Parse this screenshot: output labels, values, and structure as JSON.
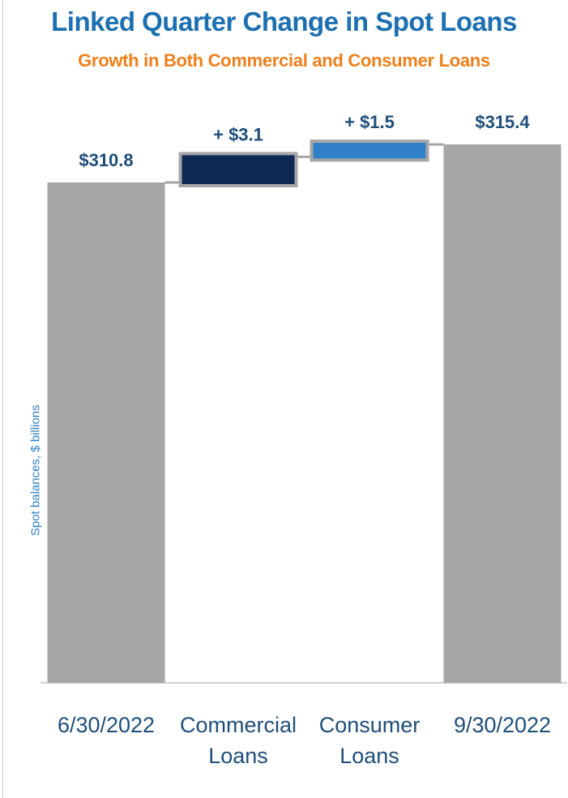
{
  "title": "Linked Quarter Change in Spot Loans",
  "subtitle": "Growth in Both Commercial and Consumer Loans",
  "colors": {
    "title": "#1c6fb0",
    "subtitle": "#f07f1a",
    "total_bar": "#a6a6a6",
    "commercial": "#0e2a54",
    "consumer": "#2f80c8",
    "label": "#1f4e79",
    "axis": "#cfcfcf"
  },
  "chart_data": {
    "type": "bar",
    "subtype": "waterfall",
    "title": "Linked Quarter Change in Spot Loans",
    "subtitle": "Growth in Both Commercial and Consumer Loans",
    "ylabel": "Spot balances, $ billions",
    "xlabel": "",
    "categories": [
      "6/30/2022",
      "Commercial Loans",
      "Consumer Loans",
      "9/30/2022"
    ],
    "category_labels": [
      "6/30/2022",
      "Commercial\nLoans",
      "Consumer\nLoans",
      "9/30/2022"
    ],
    "values": [
      310.8,
      3.1,
      1.5,
      315.4
    ],
    "kinds": [
      "total",
      "increase",
      "increase",
      "total"
    ],
    "data_labels": [
      "$310.8",
      "+ $3.1",
      "+ $1.5",
      "$315.4"
    ],
    "grid": false,
    "legend": "none"
  }
}
